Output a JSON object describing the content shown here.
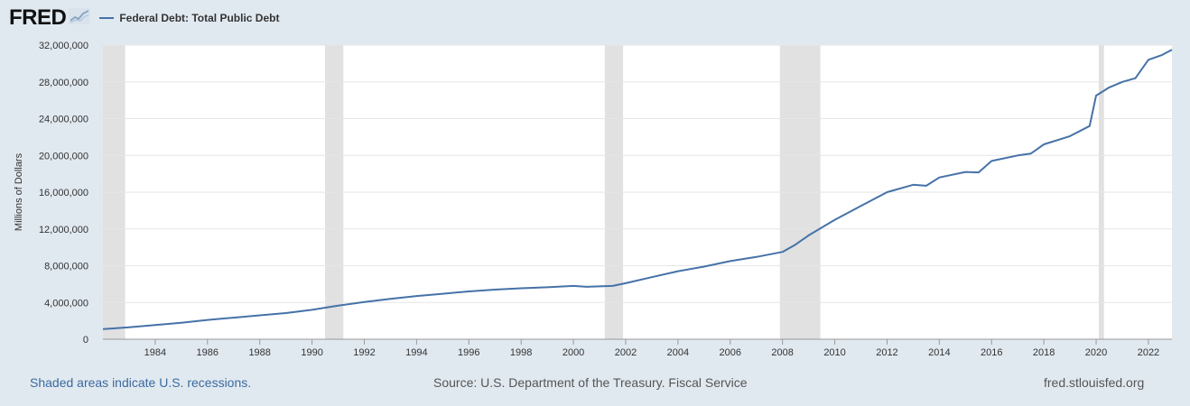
{
  "header": {
    "logo_text": "FRED",
    "logo_icon": "chart-line-icon"
  },
  "footer": {
    "recession_note": "Shaded areas indicate U.S. recessions.",
    "source": "Source: U.S. Department of the Treasury. Fiscal Service",
    "site": "fred.stlouisfed.org"
  },
  "colors": {
    "background": "#e1e9f0",
    "plot_bg": "#ffffff",
    "series": "#4572a7",
    "recession": "#e1e1e1",
    "grid": "#e6e6e6"
  },
  "chart_data": {
    "type": "line",
    "title": "",
    "xlabel": "",
    "ylabel": "Millions of Dollars",
    "xlim": [
      1982.0,
      2022.9
    ],
    "ylim": [
      0,
      32000000
    ],
    "grid": true,
    "legend_placement": "top-left",
    "x_ticks": [
      1984,
      1986,
      1988,
      1990,
      1992,
      1994,
      1996,
      1998,
      2000,
      2002,
      2004,
      2006,
      2008,
      2010,
      2012,
      2014,
      2016,
      2018,
      2020,
      2022
    ],
    "y_ticks": [
      0,
      4000000,
      8000000,
      12000000,
      16000000,
      20000000,
      24000000,
      28000000,
      32000000
    ],
    "y_tick_labels": [
      "0",
      "4,000,000",
      "8,000,000",
      "12,000,000",
      "16,000,000",
      "20,000,000",
      "24,000,000",
      "28,000,000",
      "32,000,000"
    ],
    "recessions": [
      [
        1982.0,
        1982.85
      ],
      [
        1990.5,
        1991.2
      ],
      [
        2001.2,
        2001.9
      ],
      [
        2007.9,
        2009.45
      ],
      [
        2020.1,
        2020.3
      ]
    ],
    "series": [
      {
        "name": "Federal Debt: Total Public Debt",
        "x": [
          1982.0,
          1983.0,
          1984.0,
          1985.0,
          1986.0,
          1987.0,
          1988.0,
          1989.0,
          1990.0,
          1991.0,
          1992.0,
          1993.0,
          1994.0,
          1995.0,
          1996.0,
          1997.0,
          1998.0,
          1999.0,
          2000.0,
          2000.5,
          2001.0,
          2001.5,
          2002.0,
          2003.0,
          2004.0,
          2005.0,
          2006.0,
          2007.0,
          2008.0,
          2008.5,
          2009.0,
          2010.0,
          2011.0,
          2012.0,
          2013.0,
          2013.5,
          2014.0,
          2015.0,
          2015.5,
          2016.0,
          2017.0,
          2017.5,
          2018.0,
          2019.0,
          2019.75,
          2020.0,
          2020.5,
          2021.0,
          2021.5,
          2022.0,
          2022.5,
          2022.9
        ],
        "values": [
          1100000,
          1300000,
          1550000,
          1800000,
          2100000,
          2350000,
          2600000,
          2850000,
          3200000,
          3650000,
          4050000,
          4400000,
          4700000,
          4950000,
          5200000,
          5400000,
          5550000,
          5650000,
          5800000,
          5700000,
          5750000,
          5800000,
          6100000,
          6750000,
          7400000,
          7900000,
          8500000,
          8950000,
          9500000,
          10300000,
          11300000,
          13000000,
          14500000,
          16000000,
          16800000,
          16700000,
          17600000,
          18200000,
          18150000,
          19400000,
          20000000,
          20200000,
          21200000,
          22100000,
          23200000,
          26500000,
          27400000,
          28000000,
          28400000,
          30400000,
          30900000,
          31500000
        ]
      }
    ]
  }
}
